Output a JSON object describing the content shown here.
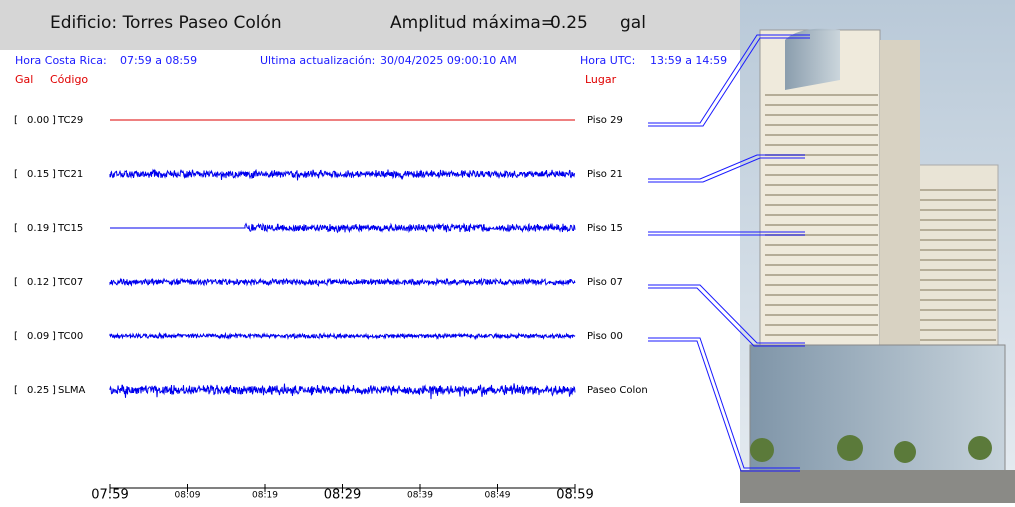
{
  "header": {
    "building": "Edificio: Torres Paseo Colón",
    "amplitude_label": "Amplitud máxima=",
    "amplitude": "0.25",
    "unit": "gal"
  },
  "info": {
    "local_label": "Hora Costa Rica:",
    "local_range": "07:59 a 08:59",
    "update_label": "Ultima actualización:",
    "update_time": "30/04/2025 09:00:10 AM",
    "utc_label": "Hora UTC:",
    "utc_range": "13:59 a 14:59"
  },
  "columns": {
    "gal": "Gal",
    "code": "Código",
    "place": "Lugar"
  },
  "rows": [
    {
      "amplitude": "0.00",
      "code": "TC29",
      "place": "Piso 29"
    },
    {
      "amplitude": "0.15",
      "code": "TC21",
      "place": "Piso 21"
    },
    {
      "amplitude": "0.19",
      "code": "TC15",
      "place": "Piso 15"
    },
    {
      "amplitude": "0.12",
      "code": "TC07",
      "place": "Piso 07"
    },
    {
      "amplitude": "0.09",
      "code": "TC00",
      "place": "Piso 00"
    },
    {
      "amplitude": "0.25",
      "code": "SLMA",
      "place": "Paseo Colon"
    }
  ],
  "time_axis": {
    "labels": [
      "07:59",
      "08:09",
      "08:19",
      "08:29",
      "08:39",
      "08:49",
      "08:59"
    ]
  }
}
